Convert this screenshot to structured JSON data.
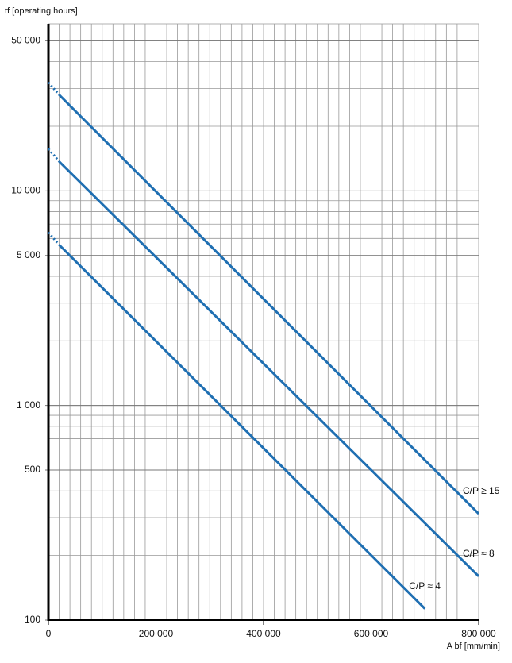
{
  "chart_data": {
    "type": "line",
    "y_label": "tf [operating hours]",
    "x_label": "A bf [mm/min]",
    "xlim": [
      0,
      800000
    ],
    "ylim": [
      100,
      60000
    ],
    "ylog": true,
    "grid": true,
    "xminor": 20000,
    "xticks": [
      0,
      {
        "value": 200000,
        "label": "200 000"
      },
      {
        "value": 400000,
        "label": "400 000"
      },
      {
        "value": 600000,
        "label": "600 000"
      },
      {
        "value": 800000,
        "label": "800 000"
      }
    ],
    "yticks": [
      100,
      500,
      {
        "value": 1000,
        "label": "1 000"
      },
      {
        "value": 5000,
        "label": "5 000"
      },
      {
        "value": 10000,
        "label": "10 000"
      },
      {
        "value": 50000,
        "label": "50 000"
      }
    ],
    "series": [
      {
        "name": "C/P ≥ 15",
        "color": "#1f6fb2",
        "x": [
          0,
          20000,
          800000
        ],
        "values": [
          32000,
          28000,
          313
        ]
      },
      {
        "name": "C/P ≈ 8",
        "color": "#1f6fb2",
        "x": [
          0,
          20000,
          800000
        ],
        "values": [
          15700,
          13700,
          160
        ]
      },
      {
        "name": "C/P ≈ 4",
        "color": "#1f6fb2",
        "x": [
          0,
          20000,
          700000
        ],
        "values": [
          6400,
          5600,
          113
        ]
      }
    ]
  }
}
